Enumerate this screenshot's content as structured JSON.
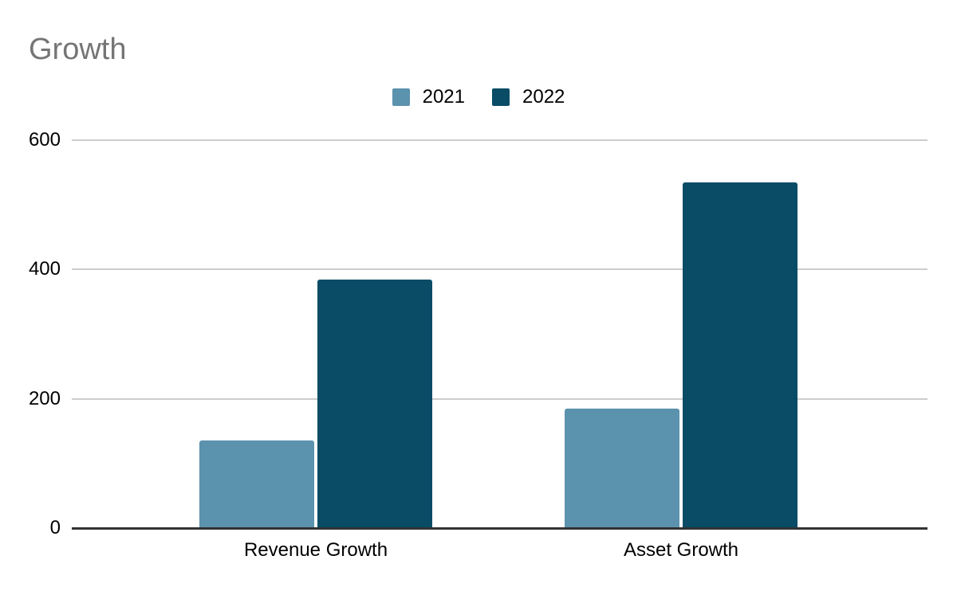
{
  "chart_data": {
    "type": "bar",
    "title": "Growth",
    "categories": [
      "Revenue Growth",
      "Asset Growth"
    ],
    "series": [
      {
        "name": "2021",
        "color": "#5b92ae",
        "values": [
          135,
          185
        ]
      },
      {
        "name": "2022",
        "color": "#0a4c66",
        "values": [
          385,
          535
        ]
      }
    ],
    "xlabel": "",
    "ylabel": "",
    "ylim": [
      0,
      600
    ],
    "yticks": [
      0,
      200,
      400,
      600
    ],
    "grid": true,
    "legend_position": "top-center",
    "colors": {
      "title": "#757575",
      "text": "#000000",
      "gridline": "#cccccc",
      "axis_line": "#333333",
      "background": "#ffffff"
    }
  }
}
